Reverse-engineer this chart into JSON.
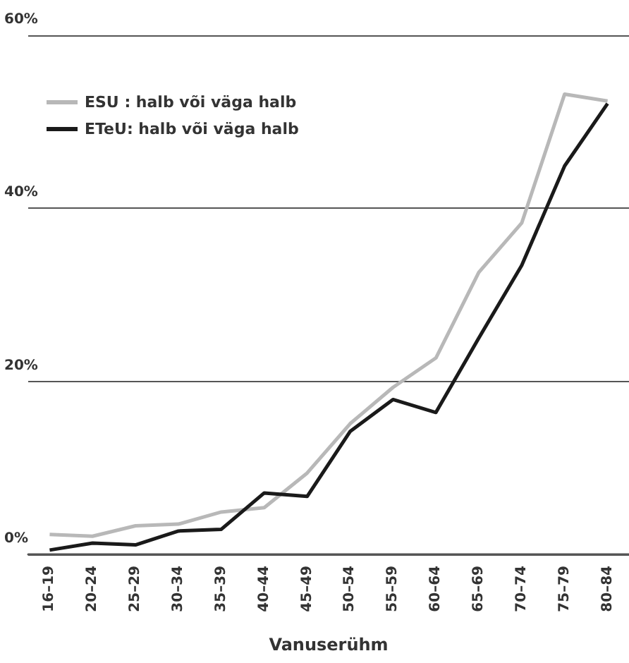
{
  "chart_data": {
    "type": "line",
    "xlabel": "Vanuserühm",
    "categories": [
      "16–19",
      "20–24",
      "25–29",
      "30–34",
      "35–39",
      "40–44",
      "45–49",
      "50–54",
      "55–59",
      "60–64",
      "65–69",
      "70–74",
      "75–79",
      "80–84"
    ],
    "series": [
      {
        "name": "ESU : halb või väga halb",
        "color": "#b8b8b8",
        "values": [
          2.3,
          2.1,
          3.3,
          3.5,
          4.9,
          5.4,
          9.4,
          15.1,
          19.3,
          22.7,
          32.6,
          38.3,
          53.2,
          52.4
        ]
      },
      {
        "name": "ETeU: halb või väga halb",
        "color": "#1a1a1a",
        "values": [
          0.5,
          1.3,
          1.1,
          2.7,
          2.9,
          7.1,
          6.7,
          14.2,
          17.9,
          16.4,
          25,
          33.4,
          44.9,
          52.1
        ]
      }
    ],
    "ylim": [
      0,
      60
    ],
    "yticks": [
      {
        "value": 0,
        "label": "0%"
      },
      {
        "value": 20,
        "label": "20%"
      },
      {
        "value": 40,
        "label": "40%"
      },
      {
        "value": 60,
        "label": "60%"
      }
    ],
    "grid": "y",
    "legend": "top left",
    "marker": "none",
    "line_style": "solid"
  }
}
